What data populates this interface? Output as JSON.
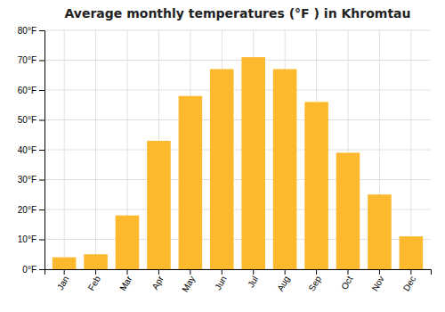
{
  "chart_data": {
    "type": "bar",
    "title": "Average monthly temperatures (°F ) in Khromtau",
    "categories": [
      "Jan",
      "Feb",
      "Mar",
      "Apr",
      "May",
      "Jun",
      "Jul",
      "Aug",
      "Sep",
      "Oct",
      "Nov",
      "Dec"
    ],
    "values": [
      4,
      5,
      18,
      43,
      58,
      67,
      71,
      67,
      56,
      39,
      25,
      11
    ],
    "color": "#FDB92E",
    "ylim": [
      0,
      80
    ],
    "yticks": [
      {
        "value": 0,
        "label": "0°F"
      },
      {
        "value": 10,
        "label": "10°F"
      },
      {
        "value": 20,
        "label": "20°F"
      },
      {
        "value": 30,
        "label": "30°F"
      },
      {
        "value": 40,
        "label": "40°F"
      },
      {
        "value": 50,
        "label": "50°F"
      },
      {
        "value": 60,
        "label": "60°F"
      },
      {
        "value": 70,
        "label": "70°F"
      },
      {
        "value": 80,
        "label": "80°F"
      }
    ],
    "grid": true
  }
}
